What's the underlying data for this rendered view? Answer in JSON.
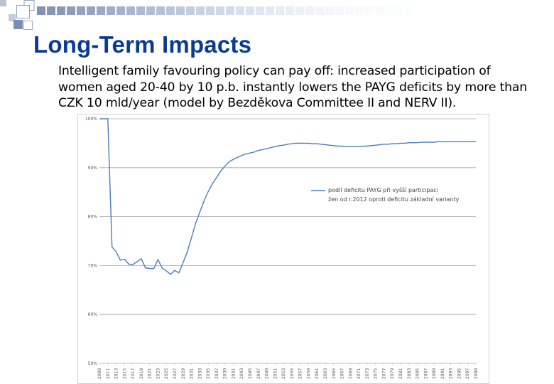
{
  "slide": {
    "title": "Long-Term Impacts",
    "body": "Intelligent family favouring policy can pay off: increased participation of women aged 20-40 by 10 p.b. instantly lowers the PAYG deficits by more than CZK 10 mld/year (model by Bezděkova Committee II and NERV II)."
  },
  "colors": {
    "title": "#0b3a93",
    "series": "#4a7ebb",
    "grid": "#a6a6a6",
    "deco_square": "#7a8fb0"
  },
  "chart_data": {
    "type": "line",
    "title": "",
    "xlabel": "",
    "ylabel": "",
    "ylim": [
      50,
      100
    ],
    "y_ticks": [
      "50%",
      "60%",
      "70%",
      "80%",
      "90%",
      "100%"
    ],
    "x_ticks": [
      "2009",
      "2011",
      "2013",
      "2015",
      "2017",
      "2019",
      "2021",
      "2023",
      "2025",
      "2027",
      "2029",
      "2031",
      "2033",
      "2035",
      "2037",
      "2039",
      "2041",
      "2043",
      "2045",
      "2047",
      "2049",
      "2051",
      "2053",
      "2055",
      "2057",
      "2059",
      "2061",
      "2063",
      "2065",
      "2067",
      "2069",
      "2071",
      "2073",
      "2075",
      "2077",
      "2079",
      "2081",
      "2083",
      "2085",
      "2087",
      "2089",
      "2091",
      "2093",
      "2095",
      "2097",
      "2099"
    ],
    "grid": true,
    "legend_position": "center-right",
    "series": [
      {
        "name": "podíl deficitu PAYG při vyšší participaci žen od r.2012 oproti deficitu základní varianty",
        "x": [
          2009,
          2011,
          2012,
          2013,
          2014,
          2015,
          2016,
          2017,
          2018,
          2019,
          2020,
          2021,
          2022,
          2023,
          2024,
          2025,
          2026,
          2027,
          2028,
          2029,
          2030,
          2031,
          2032,
          2033,
          2034,
          2035,
          2036,
          2037,
          2038,
          2039,
          2040,
          2041,
          2042,
          2043,
          2044,
          2045,
          2046,
          2047,
          2048,
          2049,
          2050,
          2051,
          2052,
          2053,
          2054,
          2055,
          2056,
          2057,
          2058,
          2059,
          2060,
          2061,
          2062,
          2063,
          2064,
          2065,
          2066,
          2067,
          2068,
          2069,
          2070,
          2071,
          2072,
          2073,
          2074,
          2075,
          2076,
          2077,
          2078,
          2079,
          2080,
          2081,
          2082,
          2083,
          2084,
          2085,
          2086,
          2087,
          2088,
          2089,
          2090,
          2091,
          2092,
          2093,
          2094,
          2095,
          2096,
          2097,
          2098,
          2099
        ],
        "values": [
          100,
          100,
          73.8,
          72.8,
          71.1,
          71.3,
          70.3,
          70.2,
          70.8,
          71.4,
          69.5,
          69.4,
          69.4,
          71.2,
          69.5,
          68.9,
          68.2,
          69.0,
          68.5,
          70.6,
          72.8,
          75.7,
          78.6,
          80.9,
          83.2,
          85.1,
          86.7,
          88.0,
          89.3,
          90.3,
          91.2,
          91.7,
          92.1,
          92.5,
          92.8,
          93.0,
          93.2,
          93.5,
          93.7,
          93.9,
          94.1,
          94.3,
          94.5,
          94.6,
          94.8,
          94.9,
          95.0,
          95.0,
          95.0,
          95.0,
          94.9,
          94.9,
          94.8,
          94.7,
          94.6,
          94.5,
          94.4,
          94.4,
          94.3,
          94.3,
          94.3,
          94.3,
          94.4,
          94.4,
          94.5,
          94.6,
          94.7,
          94.8,
          94.8,
          94.9,
          94.9,
          95.0,
          95.0,
          95.1,
          95.1,
          95.1,
          95.2,
          95.2,
          95.2,
          95.2,
          95.3,
          95.3,
          95.3,
          95.3,
          95.3,
          95.3,
          95.3,
          95.3,
          95.3,
          95.3
        ]
      }
    ]
  }
}
